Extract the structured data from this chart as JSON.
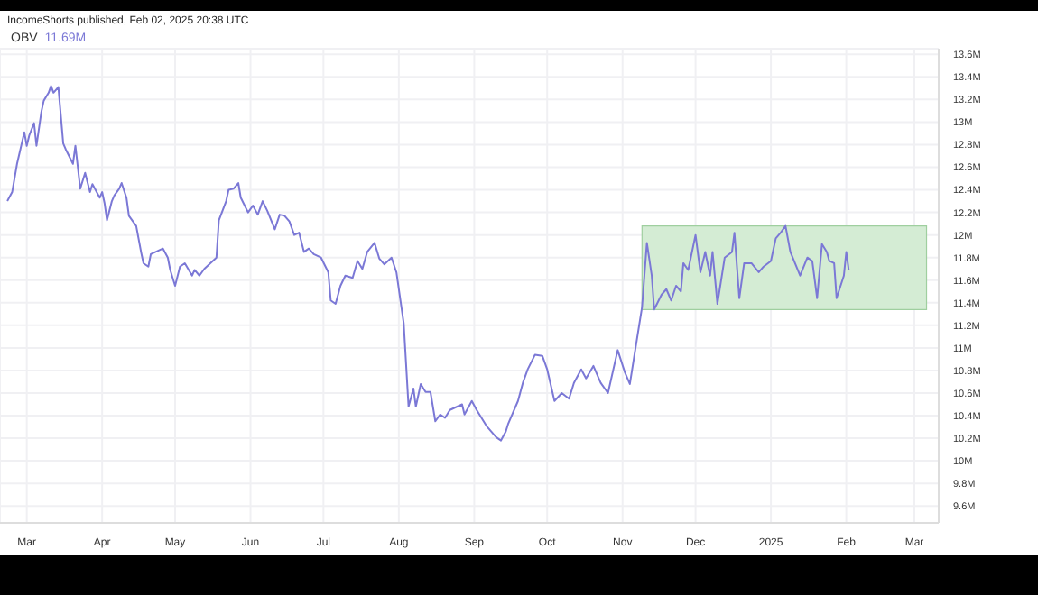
{
  "chart_data": {
    "type": "line",
    "subtitle": "IncomeShorts published, Feb 02, 2025 20:38 UTC",
    "annotations": [
      "11.69M"
    ],
    "legend": "top left",
    "grid": true,
    "line_style": "solid",
    "xlim": [
      "2024-02-19",
      "2025-03-11"
    ],
    "xticks": [
      {
        "value": "2024-03-01",
        "label": "Mar"
      },
      {
        "value": "2024-04-01",
        "label": "Apr"
      },
      {
        "value": "2024-05-01",
        "label": "May"
      },
      {
        "value": "2024-06-01",
        "label": "Jun"
      },
      {
        "value": "2024-07-01",
        "label": "Jul"
      },
      {
        "value": "2024-08-01",
        "label": "Aug"
      },
      {
        "value": "2024-09-01",
        "label": "Sep"
      },
      {
        "value": "2024-10-01",
        "label": "Oct"
      },
      {
        "value": "2024-11-01",
        "label": "Nov"
      },
      {
        "value": "2024-12-01",
        "label": "Dec"
      },
      {
        "value": "2025-01-01",
        "label": "2025"
      },
      {
        "value": "2025-02-01",
        "label": "Feb"
      },
      {
        "value": "2025-03-01",
        "label": "Mar"
      }
    ],
    "ylim": [
      9.45,
      13.65
    ],
    "yticks": [
      {
        "value": 9.6,
        "label": "9.6M"
      },
      {
        "value": 9.8,
        "label": "9.8M"
      },
      {
        "value": 10,
        "label": "10M"
      },
      {
        "value": 10.2,
        "label": "10.2M"
      },
      {
        "value": 10.4,
        "label": "10.4M"
      },
      {
        "value": 10.6,
        "label": "10.6M"
      },
      {
        "value": 10.8,
        "label": "10.8M"
      },
      {
        "value": 11,
        "label": "11M"
      },
      {
        "value": 11.2,
        "label": "11.2M"
      },
      {
        "value": 11.4,
        "label": "11.4M"
      },
      {
        "value": 11.6,
        "label": "11.6M"
      },
      {
        "value": 11.8,
        "label": "11.8M"
      },
      {
        "value": 12,
        "label": "12M"
      },
      {
        "value": 12.2,
        "label": "12.2M"
      },
      {
        "value": 12.4,
        "label": "12.4M"
      },
      {
        "value": 12.6,
        "label": "12.6M"
      },
      {
        "value": 12.8,
        "label": "12.8M"
      },
      {
        "value": 13,
        "label": "13M"
      },
      {
        "value": 13.2,
        "label": "13.2M"
      },
      {
        "value": 13.4,
        "label": "13.4M"
      },
      {
        "value": 13.6,
        "label": "13.6M"
      }
    ],
    "bands": [
      {
        "axis": "x",
        "from": "2024-11-09",
        "to": "2025-03-06",
        "color": "#d4ecd4"
      }
    ],
    "x": [
      "2024-02-22",
      "2024-02-24",
      "2024-02-26",
      "2024-02-29",
      "2024-03-01",
      "2024-03-02",
      "2024-03-04",
      "2024-03-05",
      "2024-03-07",
      "2024-03-08",
      "2024-03-10",
      "2024-03-11",
      "2024-03-12",
      "2024-03-14",
      "2024-03-16",
      "2024-03-17",
      "2024-03-20",
      "2024-03-21",
      "2024-03-23",
      "2024-03-25",
      "2024-03-27",
      "2024-03-28",
      "2024-03-31",
      "2024-04-01",
      "2024-04-02",
      "2024-04-03",
      "2024-04-05",
      "2024-04-06",
      "2024-04-08",
      "2024-04-09",
      "2024-04-11",
      "2024-04-12",
      "2024-04-15",
      "2024-04-17",
      "2024-04-18",
      "2024-04-20",
      "2024-04-21",
      "2024-04-23",
      "2024-04-26",
      "2024-04-28",
      "2024-04-29",
      "2024-05-01",
      "2024-05-03",
      "2024-05-05",
      "2024-05-08",
      "2024-05-09",
      "2024-05-11",
      "2024-05-13",
      "2024-05-15",
      "2024-05-18",
      "2024-05-19",
      "2024-05-22",
      "2024-05-23",
      "2024-05-25",
      "2024-05-27",
      "2024-05-28",
      "2024-05-31",
      "2024-06-02",
      "2024-06-04",
      "2024-06-06",
      "2024-06-08",
      "2024-06-11",
      "2024-06-13",
      "2024-06-15",
      "2024-06-17",
      "2024-06-19",
      "2024-06-21",
      "2024-06-23",
      "2024-06-25",
      "2024-06-27",
      "2024-06-30",
      "2024-07-03",
      "2024-07-04",
      "2024-07-06",
      "2024-07-08",
      "2024-07-10",
      "2024-07-13",
      "2024-07-15",
      "2024-07-17",
      "2024-07-19",
      "2024-07-22",
      "2024-07-24",
      "2024-07-26",
      "2024-07-29",
      "2024-07-31",
      "2024-08-03",
      "2024-08-05",
      "2024-08-07",
      "2024-08-08",
      "2024-08-10",
      "2024-08-12",
      "2024-08-14",
      "2024-08-16",
      "2024-08-18",
      "2024-08-20",
      "2024-08-22",
      "2024-08-25",
      "2024-08-27",
      "2024-08-28",
      "2024-08-31",
      "2024-09-02",
      "2024-09-04",
      "2024-09-06",
      "2024-09-08",
      "2024-09-10",
      "2024-09-12",
      "2024-09-14",
      "2024-09-15",
      "2024-09-19",
      "2024-09-21",
      "2024-09-23",
      "2024-09-26",
      "2024-09-29",
      "2024-10-01",
      "2024-10-04",
      "2024-10-07",
      "2024-10-10",
      "2024-10-12",
      "2024-10-15",
      "2024-10-17",
      "2024-10-20",
      "2024-10-23",
      "2024-10-26",
      "2024-10-30",
      "2024-11-02",
      "2024-11-04",
      "2024-11-07",
      "2024-11-09",
      "2024-11-11",
      "2024-11-13",
      "2024-11-14",
      "2024-11-17",
      "2024-11-19",
      "2024-11-21",
      "2024-11-23",
      "2024-11-25",
      "2024-11-26",
      "2024-11-28",
      "2024-12-01",
      "2024-12-03",
      "2024-12-05",
      "2024-12-07",
      "2024-12-08",
      "2024-12-10",
      "2024-12-13",
      "2024-12-16",
      "2024-12-17",
      "2024-12-19",
      "2024-12-21",
      "2024-12-24",
      "2024-12-27",
      "2024-12-29",
      "2025-01-01",
      "2025-01-03",
      "2025-01-05",
      "2025-01-07",
      "2025-01-09",
      "2025-01-13",
      "2025-01-16",
      "2025-01-18",
      "2025-01-20",
      "2025-01-22",
      "2025-01-24",
      "2025-01-25",
      "2025-01-27",
      "2025-01-28",
      "2025-01-31",
      "2025-02-01",
      "2025-02-02"
    ],
    "series": [
      {
        "name": "OBV",
        "color": "#7b78d6",
        "values": [
          12.3,
          12.38,
          12.63,
          12.91,
          12.79,
          12.88,
          12.99,
          12.79,
          13.09,
          13.19,
          13.26,
          13.32,
          13.26,
          13.31,
          12.81,
          12.76,
          12.63,
          12.79,
          12.41,
          12.55,
          12.38,
          12.45,
          12.33,
          12.38,
          12.28,
          12.13,
          12.3,
          12.35,
          12.41,
          12.46,
          12.33,
          12.17,
          12.08,
          11.85,
          11.75,
          11.72,
          11.83,
          11.85,
          11.88,
          11.8,
          11.69,
          11.55,
          11.72,
          11.75,
          11.64,
          11.69,
          11.64,
          11.7,
          11.74,
          11.8,
          12.13,
          12.3,
          12.4,
          12.41,
          12.46,
          12.33,
          12.2,
          12.26,
          12.18,
          12.3,
          12.21,
          12.05,
          12.18,
          12.17,
          12.12,
          12.0,
          12.02,
          11.85,
          11.88,
          11.83,
          11.8,
          11.67,
          11.42,
          11.39,
          11.55,
          11.64,
          11.62,
          11.77,
          11.7,
          11.85,
          11.93,
          11.79,
          11.74,
          11.8,
          11.67,
          11.22,
          10.48,
          10.64,
          10.48,
          10.68,
          10.61,
          10.61,
          10.35,
          10.41,
          10.38,
          10.45,
          10.48,
          10.5,
          10.41,
          10.53,
          10.45,
          10.38,
          10.31,
          10.26,
          10.21,
          10.18,
          10.26,
          10.33,
          10.53,
          10.69,
          10.81,
          10.94,
          10.93,
          10.81,
          10.53,
          10.6,
          10.55,
          10.69,
          10.81,
          10.73,
          10.84,
          10.69,
          10.6,
          10.98,
          10.78,
          10.68,
          11.09,
          11.36,
          11.93,
          11.64,
          11.34,
          11.47,
          11.52,
          11.42,
          11.55,
          11.5,
          11.75,
          11.69,
          12.0,
          11.67,
          11.85,
          11.64,
          11.85,
          11.39,
          11.8,
          11.85,
          12.02,
          11.44,
          11.75,
          11.75,
          11.67,
          11.72,
          11.77,
          11.97,
          12.02,
          12.08,
          11.85,
          11.64,
          11.8,
          11.77,
          11.44,
          11.92,
          11.85,
          11.77,
          11.75,
          11.44,
          11.64,
          11.85,
          11.69
        ]
      }
    ]
  }
}
